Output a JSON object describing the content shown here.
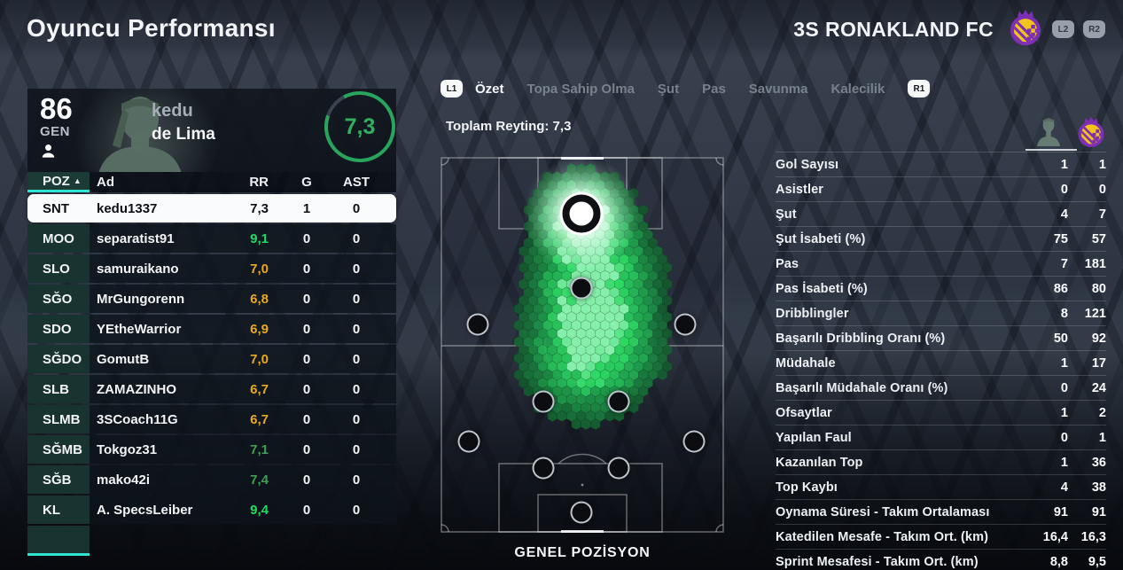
{
  "colors": {
    "accent_cyan": "#2fe3d2",
    "rating_bright_green": "#1fdd62",
    "rating_yellow": "#e8a81f",
    "rating_muted_green": "#3f9e53",
    "ring_green": "#28a55c",
    "heat_low": "#14572e",
    "heat_mid": "#1fa24d",
    "heat_high": "#2ee567",
    "heat_peak": "#8dffb4",
    "crest_purple": "#7d2fb3",
    "crest_gold": "#f2c41d"
  },
  "header": {
    "title": "Oyuncu Performansı",
    "club_name": "3S RONAKLAND FC",
    "l2_label": "L2",
    "r2_label": "R2"
  },
  "tabs": {
    "l1_label": "L1",
    "r1_label": "R1",
    "items": [
      {
        "id": "ozet",
        "label": "Özet",
        "active": true
      },
      {
        "id": "topa-sahip-olma",
        "label": "Topa Sahip Olma",
        "active": false
      },
      {
        "id": "sut",
        "label": "Şut",
        "active": false
      },
      {
        "id": "pas",
        "label": "Pas",
        "active": false
      },
      {
        "id": "savunma",
        "label": "Savunma",
        "active": false
      },
      {
        "id": "kalecilik",
        "label": "Kalecilik",
        "active": false
      }
    ]
  },
  "center": {
    "total_rating_label": "Toplam Reyting: 7,3",
    "field_label": "GENEL POZİSYON"
  },
  "player": {
    "overall": "86",
    "overall_label": "GEN",
    "first_name": "kedu",
    "last_name": "de Lima",
    "match_rating": "7,3",
    "ring_percent": 88
  },
  "roster": {
    "columns": [
      "POZ",
      "Ad",
      "RR",
      "G",
      "AST"
    ],
    "sort_arrow": "▲",
    "rows": [
      {
        "poz": "SNT",
        "name": "kedu1337",
        "rr": "7,3",
        "g": "1",
        "ast": "0",
        "rr_color": "selected",
        "selected": true
      },
      {
        "poz": "MOO",
        "name": "separatist91",
        "rr": "9,1",
        "g": "0",
        "ast": "0",
        "rr_color": "bright"
      },
      {
        "poz": "SLO",
        "name": "samuraikano",
        "rr": "7,0",
        "g": "0",
        "ast": "0",
        "rr_color": "yellow"
      },
      {
        "poz": "SĞO",
        "name": "MrGungorenn",
        "rr": "6,8",
        "g": "0",
        "ast": "0",
        "rr_color": "yellow"
      },
      {
        "poz": "SDO",
        "name": "YEtheWarrior",
        "rr": "6,9",
        "g": "0",
        "ast": "0",
        "rr_color": "yellow"
      },
      {
        "poz": "SĞDO",
        "name": "GomutB",
        "rr": "7,0",
        "g": "0",
        "ast": "0",
        "rr_color": "yellow"
      },
      {
        "poz": "SLB",
        "name": "ZAMAZINHO",
        "rr": "6,7",
        "g": "0",
        "ast": "0",
        "rr_color": "yellow"
      },
      {
        "poz": "SLMB",
        "name": "3SCoach11G",
        "rr": "6,7",
        "g": "0",
        "ast": "0",
        "rr_color": "yellow"
      },
      {
        "poz": "SĞMB",
        "name": "Tokgoz31",
        "rr": "7,1",
        "g": "0",
        "ast": "0",
        "rr_color": "muted"
      },
      {
        "poz": "SĞB",
        "name": "mako42i",
        "rr": "7,4",
        "g": "0",
        "ast": "0",
        "rr_color": "muted"
      },
      {
        "poz": "KL",
        "name": "A. SpecsLeiber",
        "rr": "9,4",
        "g": "0",
        "ast": "0",
        "rr_color": "bright"
      }
    ]
  },
  "stats": {
    "rows": [
      {
        "label": "Gol Sayısı",
        "player": "1",
        "team": "1"
      },
      {
        "label": "Asistler",
        "player": "0",
        "team": "0"
      },
      {
        "label": "Şut",
        "player": "4",
        "team": "7"
      },
      {
        "label": "Şut İsabeti (%)",
        "player": "75",
        "team": "57"
      },
      {
        "label": "Pas",
        "player": "7",
        "team": "181"
      },
      {
        "label": "Pas İsabeti (%)",
        "player": "86",
        "team": "80"
      },
      {
        "label": "Dribblingler",
        "player": "8",
        "team": "121"
      },
      {
        "label": "Başarılı Dribbling Oranı (%)",
        "player": "50",
        "team": "92"
      },
      {
        "label": "Müdahale",
        "player": "1",
        "team": "17"
      },
      {
        "label": "Başarılı Müdahale Oranı (%)",
        "player": "0",
        "team": "24"
      },
      {
        "label": "Ofsaytlar",
        "player": "1",
        "team": "2"
      },
      {
        "label": "Yapılan Faul",
        "player": "0",
        "team": "1"
      },
      {
        "label": "Kazanılan Top",
        "player": "1",
        "team": "36"
      },
      {
        "label": "Top Kaybı",
        "player": "4",
        "team": "38"
      },
      {
        "label": "Oynama Süresi - Takım Ortalaması",
        "player": "91",
        "team": "91"
      },
      {
        "label": "Katedilen Mesafe - Takım Ort. (km)",
        "player": "16,4",
        "team": "16,3"
      },
      {
        "label": "Sprint Mesafesi - Takım Ort. (km)",
        "player": "8,8",
        "team": "9,5"
      }
    ]
  },
  "chart_data": {
    "type": "heatmap",
    "title": "GENEL POZİSYON",
    "field_size_px": [
      320,
      424
    ],
    "heat_sources": [
      {
        "x": 0.494,
        "y": 0.15,
        "sigma": 34,
        "weight": 1.05
      },
      {
        "x": 0.5,
        "y": 0.335,
        "sigma": 46,
        "weight": 0.6
      },
      {
        "x": 0.487,
        "y": 0.555,
        "sigma": 48,
        "weight": 0.75
      },
      {
        "x": 0.615,
        "y": 0.285,
        "sigma": 48,
        "weight": 0.42
      },
      {
        "x": 0.64,
        "y": 0.53,
        "sigma": 42,
        "weight": 0.38
      },
      {
        "x": 0.545,
        "y": 0.42,
        "sigma": 40,
        "weight": 0.25
      }
    ],
    "player_dots": [
      {
        "x": 0.496,
        "y": 0.151,
        "selected": true
      },
      {
        "x": 0.496,
        "y": 0.349
      },
      {
        "x": 0.131,
        "y": 0.446
      },
      {
        "x": 0.864,
        "y": 0.446
      },
      {
        "x": 0.362,
        "y": 0.65
      },
      {
        "x": 0.629,
        "y": 0.65
      },
      {
        "x": 0.101,
        "y": 0.758
      },
      {
        "x": 0.893,
        "y": 0.758
      },
      {
        "x": 0.362,
        "y": 0.829
      },
      {
        "x": 0.629,
        "y": 0.829
      },
      {
        "x": 0.496,
        "y": 0.945
      }
    ]
  }
}
